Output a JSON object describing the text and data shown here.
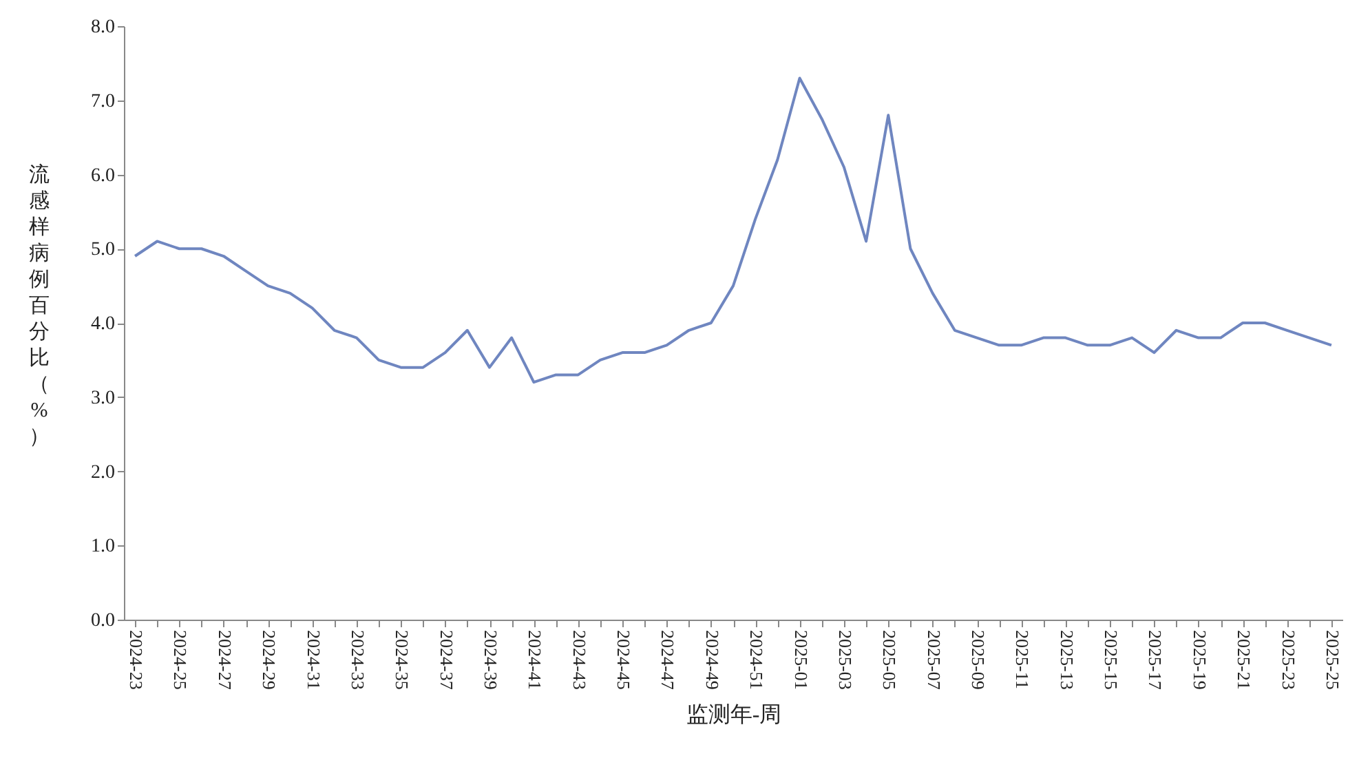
{
  "chart_data": {
    "type": "line",
    "xlabel": "监测年-周",
    "ylabel": "流感样病例百分比（%）",
    "categories": [
      "2024-23",
      null,
      "2024-25",
      null,
      "2024-27",
      null,
      "2024-29",
      null,
      "2024-31",
      null,
      "2024-33",
      null,
      "2024-35",
      null,
      "2024-37",
      null,
      "2024-39",
      null,
      "2024-41",
      null,
      "2024-43",
      null,
      "2024-45",
      null,
      "2024-47",
      null,
      "2024-49",
      null,
      "2024-51",
      null,
      "2025-01",
      null,
      "2025-03",
      null,
      "2025-05",
      null,
      "2025-07",
      null,
      "2025-09",
      null,
      "2025-11",
      null,
      "2025-13",
      null,
      "2025-15",
      null,
      "2025-17",
      null,
      "2025-19",
      null,
      "2025-21",
      null,
      "2025-23",
      null,
      "2025-25"
    ],
    "series": [
      {
        "color": "#6f86c0",
        "values": [
          4.9,
          5.1,
          5.0,
          5.0,
          4.9,
          4.7,
          4.5,
          4.4,
          4.2,
          3.9,
          3.8,
          3.5,
          3.4,
          3.4,
          3.6,
          3.9,
          3.4,
          3.8,
          3.2,
          3.3,
          3.3,
          3.5,
          3.6,
          3.6,
          3.7,
          3.9,
          4.0,
          4.5,
          5.4,
          6.2,
          7.3,
          6.75,
          6.1,
          5.1,
          6.8,
          5.0,
          4.4,
          3.9,
          3.8,
          3.7,
          3.7,
          3.8,
          3.8,
          3.7,
          3.7,
          3.8,
          3.6,
          3.9,
          3.8,
          3.8,
          4.0,
          4.0,
          3.9,
          3.8,
          3.7
        ]
      }
    ],
    "ylim": [
      0,
      8
    ],
    "yticks": [
      {
        "value": 0,
        "label": "0.0"
      },
      {
        "value": 1,
        "label": "1.0"
      },
      {
        "value": 2,
        "label": "2.0"
      },
      {
        "value": 3,
        "label": "3.0"
      },
      {
        "value": 4,
        "label": "4.0"
      },
      {
        "value": 5,
        "label": "5.0"
      },
      {
        "value": 6,
        "label": "6.0"
      },
      {
        "value": 7,
        "label": "7.0"
      },
      {
        "value": 8,
        "label": "8.0"
      }
    ],
    "line_style": "solid"
  }
}
